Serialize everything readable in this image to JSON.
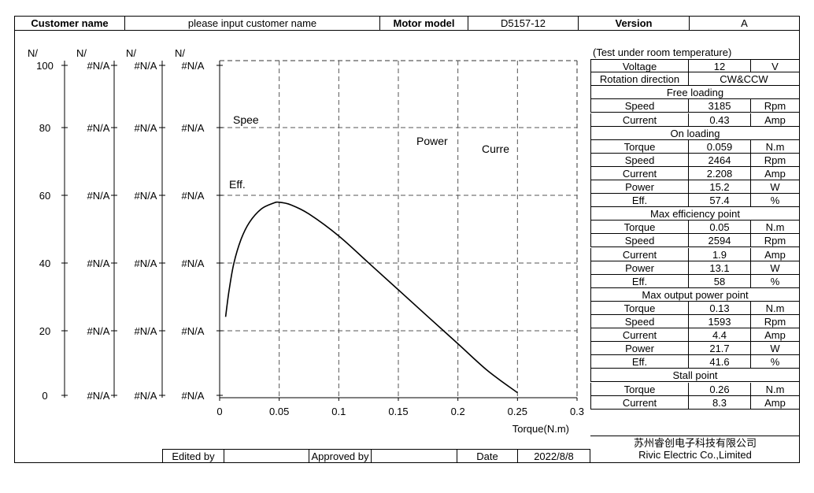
{
  "header": {
    "customer_label": "Customer name",
    "customer_value": "please input customer name",
    "motor_label": "Motor model",
    "motor_value": "D5157-12",
    "version_label": "Version",
    "version_value": "A"
  },
  "spec": {
    "note": "(Test under room temperature)",
    "voltage": {
      "label": "Voltage",
      "value": "12",
      "unit": "V"
    },
    "rotation": {
      "label": "Rotation direction",
      "value": "CW&CCW"
    },
    "sections": [
      {
        "title": "Free loading",
        "rows": [
          {
            "label": "Speed",
            "value": "3185",
            "unit": "Rpm"
          },
          {
            "label": "Current",
            "value": "0.43",
            "unit": "Amp"
          }
        ]
      },
      {
        "title": "On loading",
        "rows": [
          {
            "label": "Torque",
            "value": "0.059",
            "unit": "N.m"
          },
          {
            "label": "Speed",
            "value": "2464",
            "unit": "Rpm"
          },
          {
            "label": "Current",
            "value": "2.208",
            "unit": "Amp"
          },
          {
            "label": "Power",
            "value": "15.2",
            "unit": "W"
          },
          {
            "label": "Eff.",
            "value": "57.4",
            "unit": "%"
          }
        ]
      },
      {
        "title": "Max efficiency point",
        "rows": [
          {
            "label": "Torque",
            "value": "0.05",
            "unit": "N.m"
          },
          {
            "label": "Speed",
            "value": "2594",
            "unit": "Rpm"
          },
          {
            "label": "Current",
            "value": "1.9",
            "unit": "Amp"
          },
          {
            "label": "Power",
            "value": "13.1",
            "unit": "W"
          },
          {
            "label": "Eff.",
            "value": "58",
            "unit": "%"
          }
        ]
      },
      {
        "title": "Max output power point",
        "rows": [
          {
            "label": "Torque",
            "value": "0.13",
            "unit": "N.m"
          },
          {
            "label": "Speed",
            "value": "1593",
            "unit": "Rpm"
          },
          {
            "label": "Current",
            "value": "4.4",
            "unit": "Amp"
          },
          {
            "label": "Power",
            "value": "21.7",
            "unit": "W"
          },
          {
            "label": "Eff.",
            "value": "41.6",
            "unit": "%"
          }
        ]
      },
      {
        "title": "Stall point",
        "rows": [
          {
            "label": "Torque",
            "value": "0.26",
            "unit": "N.m"
          },
          {
            "label": "Current",
            "value": "8.3",
            "unit": "Amp"
          }
        ]
      }
    ]
  },
  "footer": {
    "edited_label": "Edited by",
    "approved_label": "Approved by",
    "date_label": "Date",
    "date_value": "2022/8/8",
    "company_cn": "苏州睿创电子科技有限公司",
    "company_en": "Rivic Electric Co.,Limited"
  },
  "chart_data": {
    "type": "line",
    "xlabel": "Torque(N.m)",
    "xlim": [
      0,
      0.3
    ],
    "x_ticks": [
      "0",
      "0.05",
      "0.1",
      "0.15",
      "0.2",
      "0.25",
      "0.3"
    ],
    "grid": true,
    "y_axes": [
      {
        "header": "N/",
        "ticks": [
          "100",
          "80",
          "60",
          "40",
          "20",
          "0"
        ]
      },
      {
        "header": "N/",
        "ticks": [
          "#N/A",
          "#N/A",
          "#N/A",
          "#N/A",
          "#N/A",
          "#N/A"
        ]
      },
      {
        "header": "N/",
        "ticks": [
          "#N/A",
          "#N/A",
          "#N/A",
          "#N/A",
          "#N/A",
          "#N/A"
        ]
      },
      {
        "header": "N/",
        "ticks": [
          "#N/A",
          "#N/A",
          "#N/A",
          "#N/A",
          "#N/A",
          "#N/A"
        ]
      }
    ],
    "ylim": [
      0,
      100
    ],
    "curve_labels": [
      "Spee",
      "Power",
      "Curre",
      "Eff."
    ],
    "series": [
      {
        "name": "Eff.",
        "x": [
          0.005,
          0.008,
          0.012,
          0.018,
          0.025,
          0.035,
          0.045,
          0.05,
          0.06,
          0.075,
          0.1,
          0.125,
          0.15,
          0.175,
          0.2,
          0.225,
          0.25,
          0.26
        ],
        "y": [
          24,
          32,
          40,
          47,
          52,
          56,
          57.7,
          58,
          57.2,
          54.5,
          48,
          40,
          32,
          24,
          16,
          8,
          1.5,
          -2
        ]
      }
    ]
  }
}
